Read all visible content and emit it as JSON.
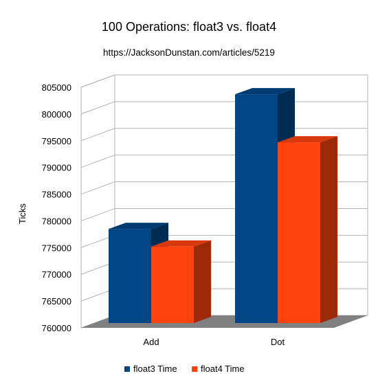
{
  "chart_data": {
    "type": "bar",
    "title": "100 Operations: float3 vs. float4",
    "subtitle": "https://JacksonDunstan.com/articles/5219",
    "xlabel": "",
    "ylabel": "Ticks",
    "categories": [
      "Add",
      "Dot"
    ],
    "series": [
      {
        "name": "float3 Time",
        "color": "#004586",
        "values": [
          778500,
          803700
        ]
      },
      {
        "name": "float4 Time",
        "color": "#ff420e",
        "values": [
          775200,
          794700
        ]
      }
    ],
    "ylim": [
      760000,
      805000
    ],
    "yticks": [
      "760000",
      "765000",
      "770000",
      "775000",
      "780000",
      "785000",
      "790000",
      "795000",
      "800000",
      "805000"
    ],
    "grid": true,
    "legend": "bottom",
    "three_d": true
  }
}
